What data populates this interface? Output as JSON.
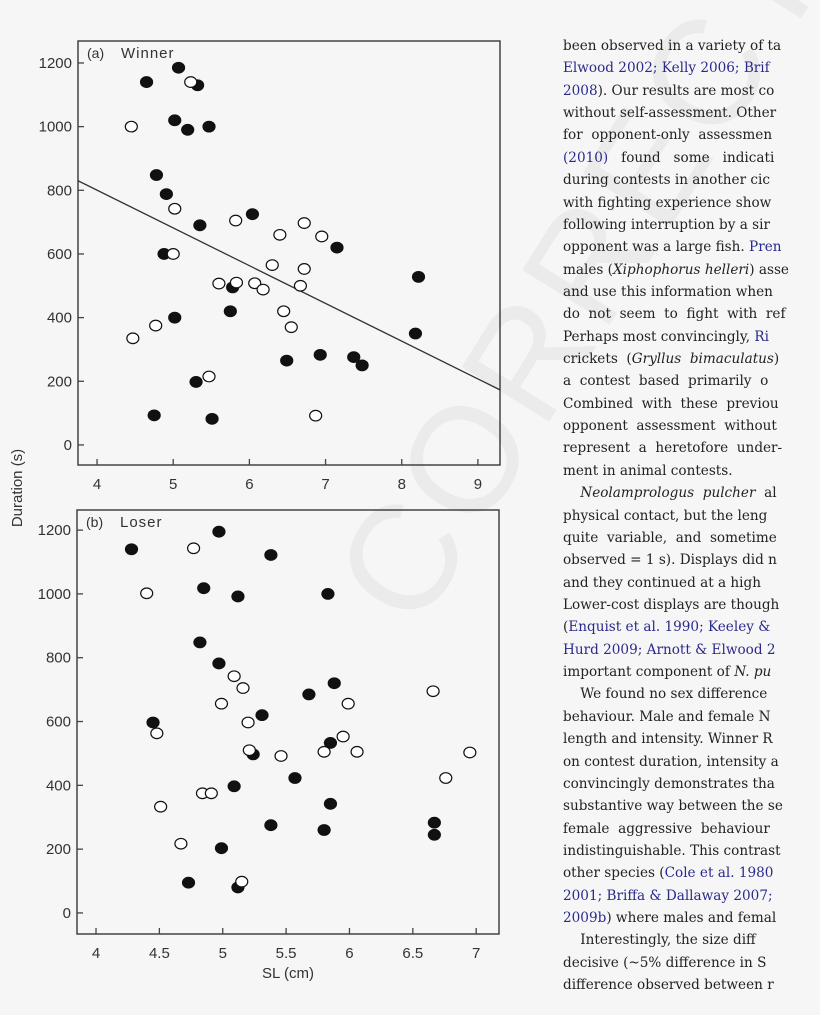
{
  "figure": {
    "ylabel_shared": "Duration (s)",
    "marker_colors": {
      "filled": "#111111",
      "open": "#ffffff"
    }
  },
  "chart_data": [
    {
      "type": "scatter",
      "panel_label": "(a)",
      "title": "Winner",
      "xlabel": "",
      "ylabel": "Duration (s)",
      "xlim": [
        3.75,
        9.29
      ],
      "ylim": [
        -63,
        1269
      ],
      "xticks": [
        "4",
        "5",
        "6",
        "7",
        "8",
        "9"
      ],
      "yticks": [
        "0",
        "200",
        "400",
        "600",
        "800",
        "1000",
        "1200"
      ],
      "grid": false,
      "regression_line": {
        "x": [
          3.75,
          9.29
        ],
        "y": [
          830,
          173
        ]
      },
      "series": [
        {
          "marker": "filled",
          "points": [
            [
              4.65,
              1140
            ],
            [
              5.07,
              1185
            ],
            [
              5.32,
              1130
            ],
            [
              5.02,
              1020
            ],
            [
              5.19,
              990
            ],
            [
              5.47,
              1000
            ],
            [
              4.78,
              848
            ],
            [
              4.91,
              788
            ],
            [
              5.35,
              690
            ],
            [
              4.88,
              600
            ],
            [
              6.04,
              725
            ],
            [
              7.15,
              620
            ],
            [
              5.78,
              495
            ],
            [
              5.75,
              420
            ],
            [
              5.02,
              400
            ],
            [
              8.22,
              528
            ],
            [
              8.18,
              350
            ],
            [
              6.93,
              283
            ],
            [
              7.37,
              276
            ],
            [
              7.48,
              250
            ],
            [
              6.49,
              265
            ],
            [
              5.3,
              198
            ],
            [
              4.75,
              93
            ],
            [
              5.51,
              82
            ]
          ]
        },
        {
          "marker": "open",
          "points": [
            [
              5.23,
              1140
            ],
            [
              4.45,
              1000
            ],
            [
              5.02,
              742
            ],
            [
              5.0,
              600
            ],
            [
              5.82,
              705
            ],
            [
              6.72,
              697
            ],
            [
              6.4,
              660
            ],
            [
              6.95,
              655
            ],
            [
              6.3,
              565
            ],
            [
              6.72,
              553
            ],
            [
              5.6,
              507
            ],
            [
              5.83,
              510
            ],
            [
              6.07,
              508
            ],
            [
              6.18,
              488
            ],
            [
              6.67,
              500
            ],
            [
              6.45,
              420
            ],
            [
              6.55,
              370
            ],
            [
              4.77,
              375
            ],
            [
              4.47,
              335
            ],
            [
              5.47,
              215
            ],
            [
              6.87,
              92
            ]
          ]
        }
      ]
    },
    {
      "type": "scatter",
      "panel_label": "(b)",
      "title": "Loser",
      "xlabel": "SL (cm)",
      "ylabel": "Duration (s)",
      "xlim": [
        3.85,
        7.18
      ],
      "ylim": [
        -66,
        1263
      ],
      "xticks": [
        "4",
        "4.5",
        "5",
        "5.5",
        "6",
        "6.5",
        "7"
      ],
      "yticks": [
        "0",
        "200",
        "400",
        "600",
        "800",
        "1000",
        "1200"
      ],
      "grid": false,
      "series": [
        {
          "marker": "filled",
          "points": [
            [
              4.28,
              1140
            ],
            [
              4.97,
              1195
            ],
            [
              5.38,
              1122
            ],
            [
              4.85,
              1018
            ],
            [
              5.12,
              992
            ],
            [
              5.83,
              1000
            ],
            [
              4.82,
              848
            ],
            [
              4.97,
              782
            ],
            [
              5.88,
              720
            ],
            [
              5.68,
              685
            ],
            [
              5.31,
              620
            ],
            [
              4.45,
              597
            ],
            [
              5.85,
              533
            ],
            [
              5.24,
              497
            ],
            [
              5.57,
              423
            ],
            [
              5.09,
              397
            ],
            [
              5.85,
              342
            ],
            [
              5.38,
              275
            ],
            [
              5.8,
              260
            ],
            [
              6.67,
              283
            ],
            [
              6.67,
              245
            ],
            [
              4.99,
              203
            ],
            [
              4.73,
              95
            ],
            [
              5.12,
              80
            ]
          ]
        },
        {
          "marker": "open",
          "points": [
            [
              4.77,
              1143
            ],
            [
              4.4,
              1002
            ],
            [
              5.09,
              742
            ],
            [
              5.16,
              705
            ],
            [
              4.99,
              656
            ],
            [
              5.99,
              656
            ],
            [
              6.66,
              695
            ],
            [
              5.2,
              597
            ],
            [
              4.48,
              563
            ],
            [
              5.95,
              553
            ],
            [
              5.21,
              510
            ],
            [
              5.46,
              492
            ],
            [
              5.8,
              505
            ],
            [
              6.06,
              505
            ],
            [
              6.95,
              503
            ],
            [
              6.76,
              423
            ],
            [
              4.84,
              375
            ],
            [
              4.91,
              375
            ],
            [
              4.51,
              333
            ],
            [
              4.67,
              217
            ],
            [
              5.15,
              98
            ]
          ]
        }
      ]
    }
  ],
  "watermark": "CORRECTED PROOF",
  "text": {
    "link_color": "#2a2a8c",
    "lines": [
      [
        {
          "t": "been observed in a variety of ta"
        }
      ],
      [
        {
          "t": "Elwood 2002; Kelly 2006; Brif",
          "s": "link"
        }
      ],
      [
        {
          "t": "2008",
          "s": "link"
        },
        {
          "t": "). Our results are most co"
        }
      ],
      [
        {
          "t": "without self-assessment. Other"
        }
      ],
      [
        {
          "t": "for  opponent-only  assessmen"
        }
      ],
      [
        {
          "t": "(2010)",
          "s": "link"
        },
        {
          "t": "   found   some   indicati"
        }
      ],
      [
        {
          "t": "during contests in another cic"
        }
      ],
      [
        {
          "t": "with fighting experience show"
        }
      ],
      [
        {
          "t": "following interruption by a sir"
        }
      ],
      [
        {
          "t": "opponent was a large fish. "
        },
        {
          "t": "Pren",
          "s": "link"
        }
      ],
      [
        {
          "t": "males ("
        },
        {
          "t": "Xiphophorus helleri",
          "s": "i"
        },
        {
          "t": ") asse"
        }
      ],
      [
        {
          "t": "and use this information when"
        }
      ],
      [
        {
          "t": "do  not  seem  to  fight  with  ref"
        }
      ],
      [
        {
          "t": "Perhaps most convincingly, "
        },
        {
          "t": "Ri",
          "s": "link"
        }
      ],
      [
        {
          "t": "crickets  ("
        },
        {
          "t": "Gryllus  bimaculatus",
          "s": "i"
        },
        {
          "t": ")"
        }
      ],
      [
        {
          "t": "a  contest  based  primarily  o"
        }
      ],
      [
        {
          "t": "Combined  with  these  previou"
        }
      ],
      [
        {
          "t": "opponent  assessment  without"
        }
      ],
      [
        {
          "t": "represent  a  heretofore  under-"
        }
      ],
      [
        {
          "t": "ment in animal contests."
        }
      ],
      [
        {
          "t": "    "
        },
        {
          "t": "Neolamprologus  pulcher",
          "s": "i"
        },
        {
          "t": "  al"
        }
      ],
      [
        {
          "t": "physical contact, but the leng"
        }
      ],
      [
        {
          "t": "quite  variable,  and  sometime"
        }
      ],
      [
        {
          "t": "observed = 1 s). Displays did n"
        }
      ],
      [
        {
          "t": "and they continued at a high"
        }
      ],
      [
        {
          "t": "Lower-cost displays are though"
        }
      ],
      [
        {
          "t": "("
        },
        {
          "t": "Enquist et al. 1990; Keeley &",
          "s": "link"
        }
      ],
      [
        {
          "t": "Hurd 2009; Arnott & Elwood 2",
          "s": "link"
        }
      ],
      [
        {
          "t": "important component of "
        },
        {
          "t": "N. pu",
          "s": "i"
        }
      ],
      [
        {
          "t": "    We found no sex difference"
        }
      ],
      [
        {
          "t": "behaviour. Male and female N"
        }
      ],
      [
        {
          "t": "length and intensity. Winner R"
        }
      ],
      [
        {
          "t": "on contest duration, intensity a"
        }
      ],
      [
        {
          "t": "convincingly demonstrates tha"
        }
      ],
      [
        {
          "t": "substantive way between the se"
        }
      ],
      [
        {
          "t": "female  aggressive  behaviour"
        }
      ],
      [
        {
          "t": "indistinguishable. This contrast"
        }
      ],
      [
        {
          "t": "other species ("
        },
        {
          "t": "Cole et al. 1980",
          "s": "link"
        }
      ],
      [
        {
          "t": "2001; Briffa & Dallaway 2007;",
          "s": "link"
        }
      ],
      [
        {
          "t": "2009b",
          "s": "link"
        },
        {
          "t": ") where males and femal"
        }
      ],
      [
        {
          "t": "    Interestingly, the size diff"
        }
      ],
      [
        {
          "t": "decisive (~5% difference in S"
        }
      ],
      [
        {
          "t": "difference observed between r"
        }
      ]
    ]
  }
}
